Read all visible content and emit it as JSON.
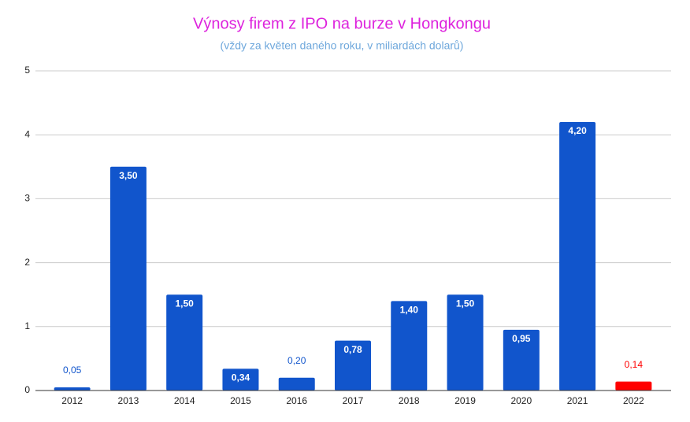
{
  "chart_data": {
    "type": "bar",
    "title": "Výnosy firem z IPO na burze v Hongkongu",
    "subtitle": "(vždy za květen daného roku, v miliardách dolarů)",
    "categories": [
      "2012",
      "2013",
      "2014",
      "2015",
      "2016",
      "2017",
      "2018",
      "2019",
      "2020",
      "2021",
      "2022"
    ],
    "values": [
      0.05,
      3.5,
      1.5,
      0.34,
      0.2,
      0.78,
      1.4,
      1.5,
      0.95,
      4.2,
      0.14
    ],
    "value_labels": [
      "0,05",
      "3,50",
      "1,50",
      "0,34",
      "0,20",
      "0,78",
      "1,40",
      "1,50",
      "0,95",
      "4,20",
      "0,14"
    ],
    "colors": [
      "#1155cc",
      "#1155cc",
      "#1155cc",
      "#1155cc",
      "#1155cc",
      "#1155cc",
      "#1155cc",
      "#1155cc",
      "#1155cc",
      "#1155cc",
      "#ff0000"
    ],
    "ylim": [
      0,
      5
    ],
    "yticks": [
      0,
      1,
      2,
      3,
      4,
      5
    ],
    "grid": true
  }
}
